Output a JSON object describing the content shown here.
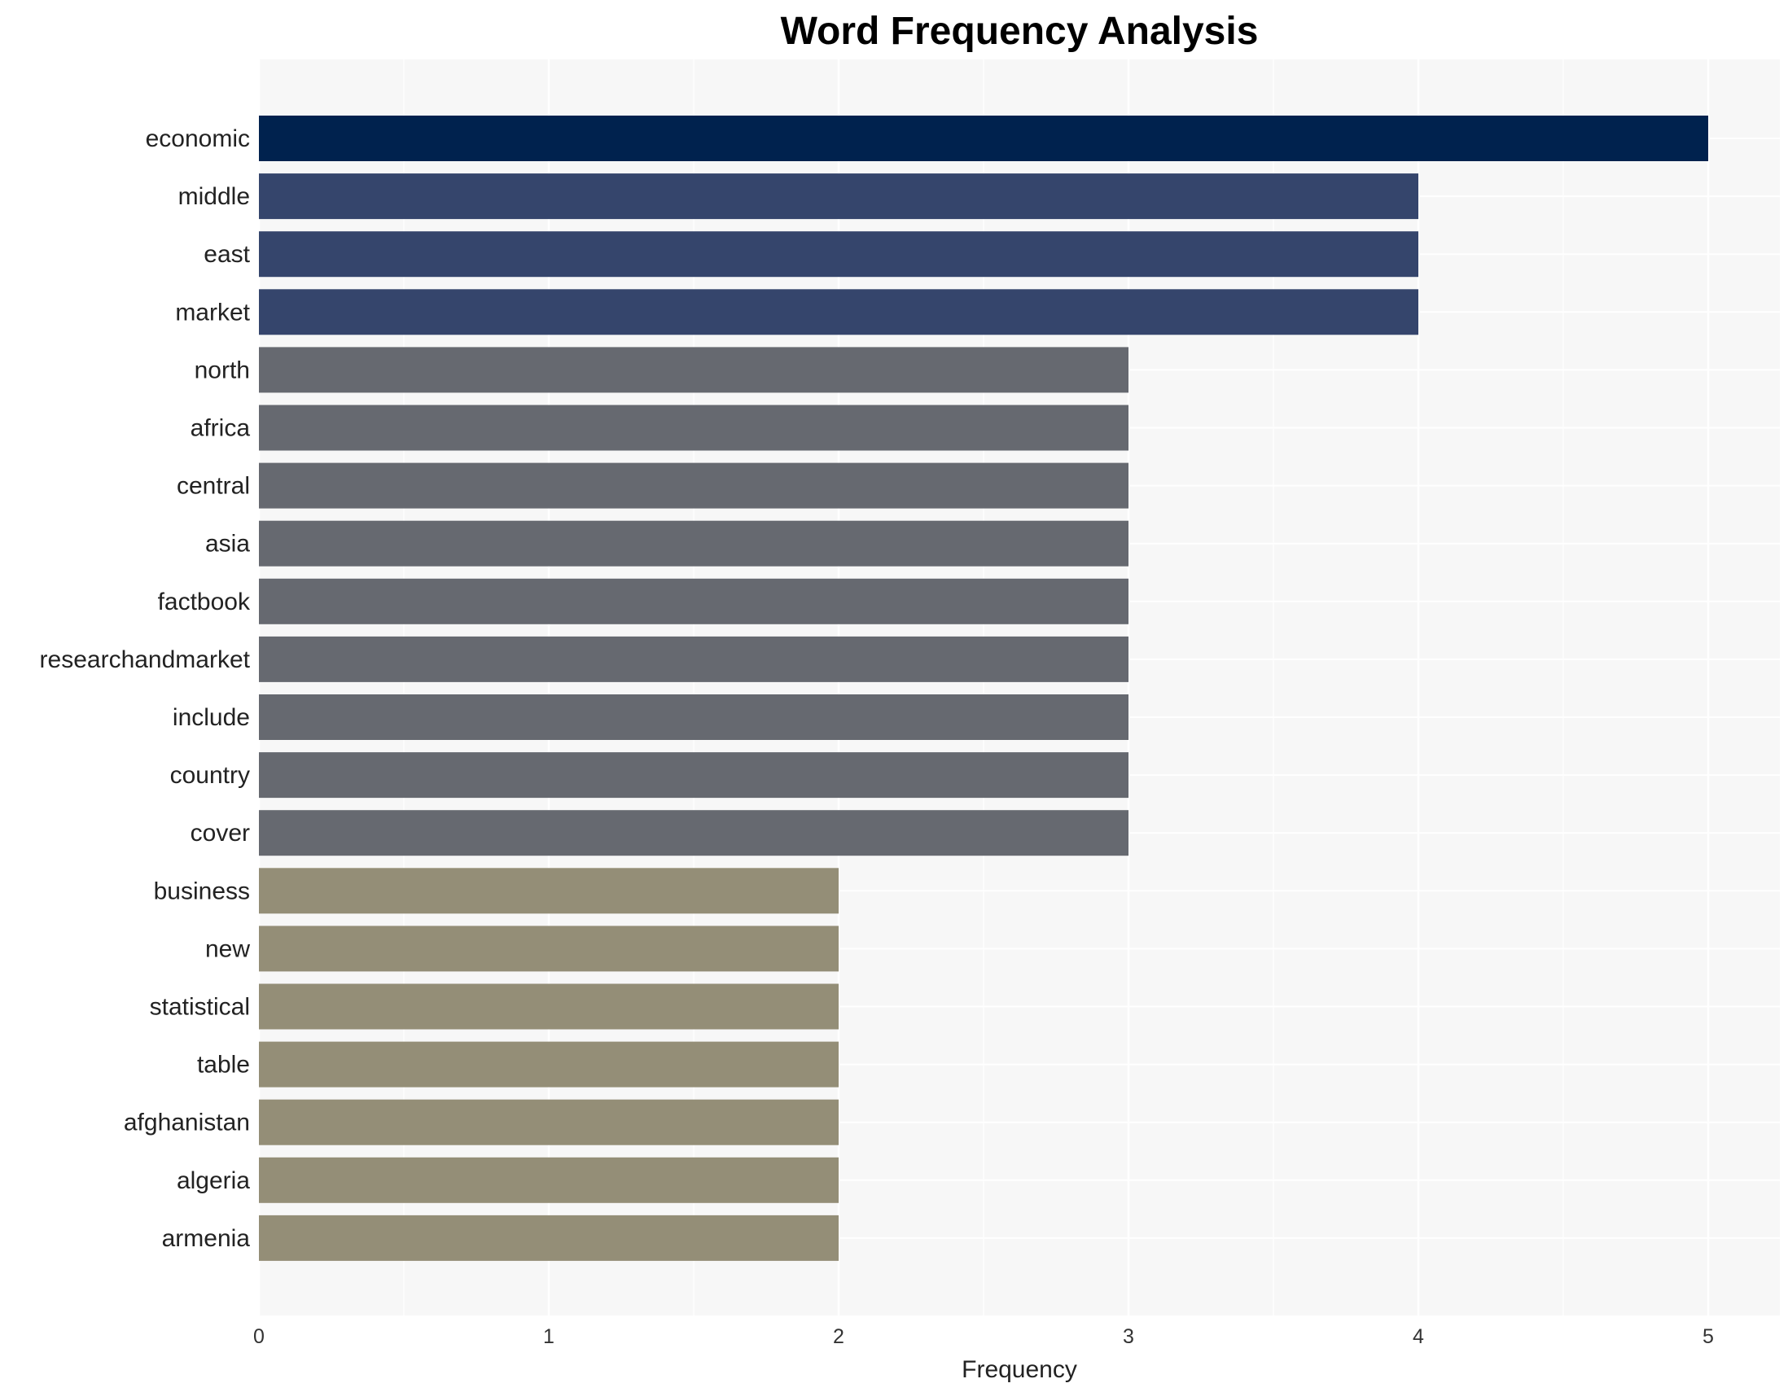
{
  "chart_data": {
    "type": "bar",
    "orientation": "horizontal",
    "title": "Word Frequency Analysis",
    "xlabel": "Frequency",
    "ylabel": "",
    "xlim": [
      0,
      5.25
    ],
    "xticks": [
      0,
      1,
      2,
      3,
      4,
      5
    ],
    "grid": true,
    "categories": [
      "economic",
      "middle",
      "east",
      "market",
      "north",
      "africa",
      "central",
      "asia",
      "factbook",
      "researchandmarket",
      "include",
      "country",
      "cover",
      "business",
      "new",
      "statistical",
      "table",
      "afghanistan",
      "algeria",
      "armenia"
    ],
    "values": [
      5,
      4,
      4,
      4,
      3,
      3,
      3,
      3,
      3,
      3,
      3,
      3,
      3,
      2,
      2,
      2,
      2,
      2,
      2,
      2
    ],
    "colors": {
      "5": "#00224e",
      "4": "#35456c",
      "3": "#666970",
      "2": "#948e77"
    },
    "background": "#f7f7f7"
  }
}
